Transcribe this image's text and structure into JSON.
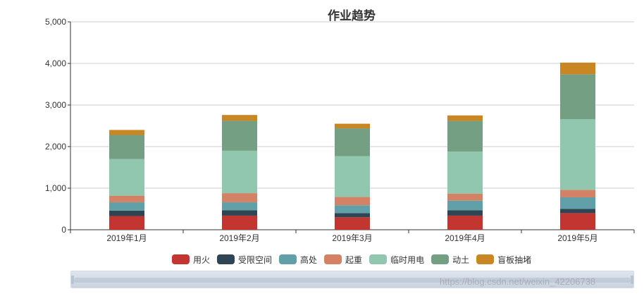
{
  "chart_data": {
    "type": "bar",
    "stacked": true,
    "title": "作业趋势",
    "categories": [
      "2019年1月",
      "2019年2月",
      "2019年3月",
      "2019年4月",
      "2019年5月"
    ],
    "ylim": [
      0,
      5000
    ],
    "yticks": [
      0,
      1000,
      2000,
      3000,
      4000,
      5000
    ],
    "ytick_labels": [
      "0",
      "1,000",
      "2,000",
      "3,000",
      "4,000",
      "5,000"
    ],
    "grid": true,
    "legend_position": "bottom",
    "series": [
      {
        "name": "用火",
        "color": "#c23531",
        "values": [
          330,
          340,
          300,
          340,
          400
        ]
      },
      {
        "name": "受限空间",
        "color": "#2f4554",
        "values": [
          130,
          130,
          100,
          130,
          100
        ]
      },
      {
        "name": "高处",
        "color": "#61a0a8",
        "values": [
          200,
          190,
          190,
          230,
          280
        ]
      },
      {
        "name": "起重",
        "color": "#d48265",
        "values": [
          160,
          220,
          200,
          170,
          180
        ]
      },
      {
        "name": "临时用电",
        "color": "#91c7ae",
        "values": [
          880,
          1020,
          980,
          1010,
          1700
        ]
      },
      {
        "name": "动土",
        "color": "#749f83",
        "values": [
          580,
          720,
          670,
          740,
          1080
        ]
      },
      {
        "name": "盲板抽堵",
        "color": "#ca8622",
        "values": [
          120,
          140,
          110,
          130,
          280
        ]
      }
    ]
  },
  "watermark": "https://blog.csdn.net/weixin_42206738"
}
